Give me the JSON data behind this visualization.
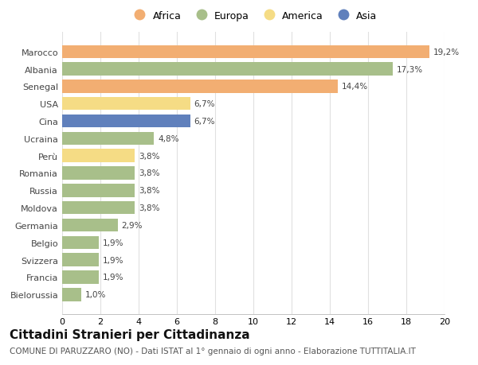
{
  "categories": [
    "Bielorussia",
    "Francia",
    "Svizzera",
    "Belgio",
    "Germania",
    "Moldova",
    "Russia",
    "Romania",
    "Perù",
    "Ucraina",
    "Cina",
    "USA",
    "Senegal",
    "Albania",
    "Marocco"
  ],
  "values": [
    1.0,
    1.9,
    1.9,
    1.9,
    2.9,
    3.8,
    3.8,
    3.8,
    3.8,
    4.8,
    6.7,
    6.7,
    14.4,
    17.3,
    19.2
  ],
  "labels": [
    "1,0%",
    "1,9%",
    "1,9%",
    "1,9%",
    "2,9%",
    "3,8%",
    "3,8%",
    "3,8%",
    "3,8%",
    "4,8%",
    "6,7%",
    "6,7%",
    "14,4%",
    "17,3%",
    "19,2%"
  ],
  "continents": [
    "Europa",
    "Europa",
    "Europa",
    "Europa",
    "Europa",
    "Europa",
    "Europa",
    "Europa",
    "America",
    "Europa",
    "Asia",
    "America",
    "Africa",
    "Europa",
    "Africa"
  ],
  "colors": {
    "Africa": "#F2AE72",
    "Europa": "#A8BF8A",
    "America": "#F5DC85",
    "Asia": "#6080BC"
  },
  "legend_order": [
    "Africa",
    "Europa",
    "America",
    "Asia"
  ],
  "legend_colors": [
    "#F2AE72",
    "#A8BF8A",
    "#F5DC85",
    "#6080BC"
  ],
  "title": "Cittadini Stranieri per Cittadinanza",
  "subtitle": "COMUNE DI PARUZZARO (NO) - Dati ISTAT al 1° gennaio di ogni anno - Elaborazione TUTTITALIA.IT",
  "xlim": [
    0,
    20
  ],
  "xticks": [
    0,
    2,
    4,
    6,
    8,
    10,
    12,
    14,
    16,
    18,
    20
  ],
  "background_color": "#ffffff",
  "grid_color": "#e0e0e0",
  "bar_height": 0.75,
  "title_fontsize": 11,
  "subtitle_fontsize": 7.5,
  "label_fontsize": 7.5,
  "tick_fontsize": 8,
  "legend_fontsize": 9
}
